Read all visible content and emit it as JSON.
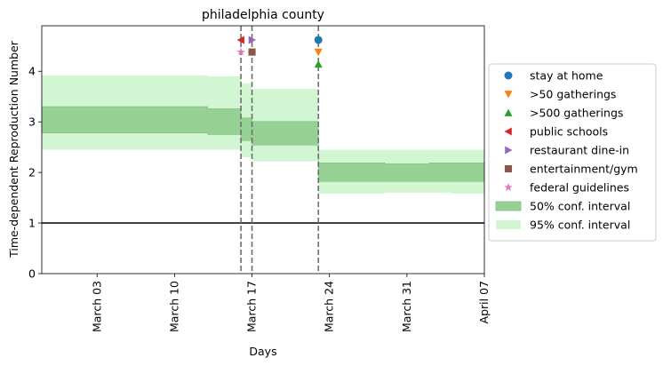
{
  "chart_data": {
    "type": "area",
    "title": "philadelphia county",
    "xlabel": "Days",
    "ylabel": "Time-dependent Reproduction Number",
    "xlim": [
      "2020-02-27",
      "2020-04-07"
    ],
    "ylim": [
      0,
      4.9
    ],
    "x_ticks": [
      {
        "date": "2020-03-03",
        "label": "March 03"
      },
      {
        "date": "2020-03-10",
        "label": "March 10"
      },
      {
        "date": "2020-03-17",
        "label": "March 17"
      },
      {
        "date": "2020-03-24",
        "label": "March 24"
      },
      {
        "date": "2020-03-31",
        "label": "March 31"
      },
      {
        "date": "2020-04-07",
        "label": "April 07"
      }
    ],
    "y_ticks": [
      0,
      1,
      2,
      3,
      4
    ],
    "grid": false,
    "reference_line_y": 1,
    "band_95": {
      "name": "95% conf. interval",
      "color": "#d2f5d2",
      "segments": [
        {
          "x0": "2020-02-27",
          "x1": "2020-03-13",
          "low": 2.45,
          "high": 3.92
        },
        {
          "x0": "2020-03-13",
          "x1": "2020-03-16",
          "low": 2.45,
          "high": 3.9
        },
        {
          "x0": "2020-03-16",
          "x1": "2020-03-17",
          "low": 2.3,
          "high": 3.76
        },
        {
          "x0": "2020-03-17",
          "x1": "2020-03-23",
          "low": 2.22,
          "high": 3.65
        },
        {
          "x0": "2020-03-23",
          "x1": "2020-03-29",
          "low": 1.58,
          "high": 2.45
        },
        {
          "x0": "2020-03-29",
          "x1": "2020-04-04",
          "low": 1.6,
          "high": 2.45
        },
        {
          "x0": "2020-04-04",
          "x1": "2020-04-07",
          "low": 1.58,
          "high": 2.45
        }
      ]
    },
    "band_50": {
      "name": "50% conf. interval",
      "color": "#95d095",
      "segments": [
        {
          "x0": "2020-02-27",
          "x1": "2020-03-13",
          "low": 2.78,
          "high": 3.3
        },
        {
          "x0": "2020-03-13",
          "x1": "2020-03-16",
          "low": 2.75,
          "high": 3.26
        },
        {
          "x0": "2020-03-16",
          "x1": "2020-03-17",
          "low": 2.63,
          "high": 3.08
        },
        {
          "x0": "2020-03-17",
          "x1": "2020-03-23",
          "low": 2.54,
          "high": 3.01
        },
        {
          "x0": "2020-03-23",
          "x1": "2020-03-29",
          "low": 1.82,
          "high": 2.19
        },
        {
          "x0": "2020-03-29",
          "x1": "2020-04-02",
          "low": 1.82,
          "high": 2.17
        },
        {
          "x0": "2020-04-02",
          "x1": "2020-04-07",
          "low": 1.82,
          "high": 2.19
        }
      ]
    },
    "interventions": [
      {
        "name": "stay at home",
        "date": "2020-03-23",
        "y": 4.62,
        "marker": "circle",
        "color": "#1f77b4"
      },
      {
        "name": ">50 gatherings",
        "date": "2020-03-23",
        "y": 4.38,
        "marker": "triangle-down",
        "color": "#ff7f0e"
      },
      {
        "name": ">500 gatherings",
        "date": "2020-03-23",
        "y": 4.14,
        "marker": "triangle-up",
        "color": "#2ca02c"
      },
      {
        "name": "public schools",
        "date": "2020-03-16",
        "y": 4.62,
        "marker": "triangle-left",
        "color": "#d62728"
      },
      {
        "name": "restaurant dine-in",
        "date": "2020-03-17",
        "y": 4.62,
        "marker": "triangle-right",
        "color": "#9467bd"
      },
      {
        "name": "entertainment/gym",
        "date": "2020-03-17",
        "y": 4.38,
        "marker": "square",
        "color": "#8c564b"
      },
      {
        "name": "federal guidelines",
        "date": "2020-03-16",
        "y": 4.38,
        "marker": "star",
        "color": "#e377c2"
      }
    ],
    "vlines": [
      "2020-03-16",
      "2020-03-17",
      "2020-03-23"
    ],
    "legend": {
      "position": "right-outside",
      "entries": [
        "stay at home",
        ">50 gatherings",
        ">500 gatherings",
        "public schools",
        "restaurant dine-in",
        "entertainment/gym",
        "federal guidelines",
        "50% conf. interval",
        "95% conf. interval"
      ]
    }
  }
}
